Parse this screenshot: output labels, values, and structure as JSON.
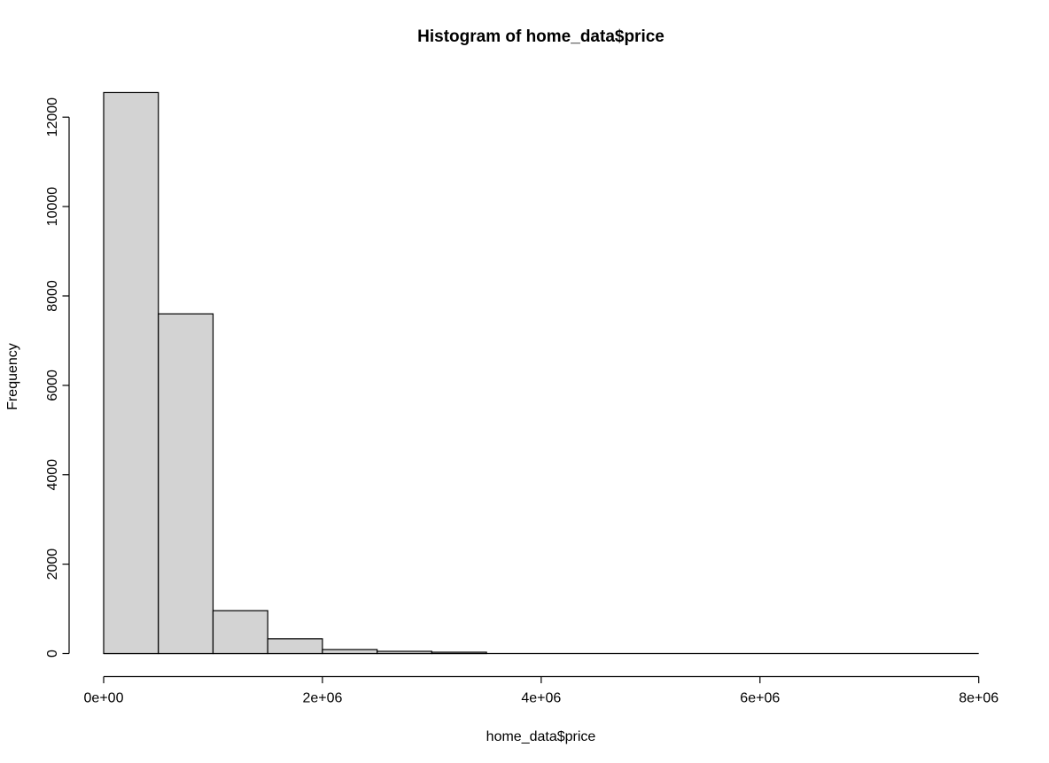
{
  "chart_data": {
    "type": "bar",
    "subtype": "histogram",
    "title": "Histogram of home_data$price",
    "xlabel": "home_data$price",
    "ylabel": "Frequency",
    "xlim": [
      0,
      8000000
    ],
    "ylim": [
      0,
      12000
    ],
    "bin_width": 500000,
    "bin_start": 0,
    "categories": [
      "0-0.5e6",
      "0.5e6-1e6",
      "1e6-1.5e6",
      "1.5e6-2e6",
      "2e6-2.5e6",
      "2.5e6-3e6",
      "3e6-3.5e6",
      "3.5e6-4e6",
      "4e6-4.5e6",
      "4.5e6-5e6",
      "5e6-5.5e6",
      "5.5e6-6e6",
      "6e6-6.5e6",
      "6.5e6-7e6",
      "7e6-7.5e6",
      "7.5e6-8e6"
    ],
    "values": [
      12550,
      7600,
      960,
      330,
      90,
      50,
      30,
      0,
      0,
      0,
      0,
      0,
      0,
      0,
      0,
      0
    ],
    "x_ticks": [
      {
        "value": 0,
        "label": "0e+00"
      },
      {
        "value": 2000000,
        "label": "2e+06"
      },
      {
        "value": 4000000,
        "label": "4e+06"
      },
      {
        "value": 6000000,
        "label": "6e+06"
      },
      {
        "value": 8000000,
        "label": "8e+06"
      }
    ],
    "y_ticks": [
      {
        "value": 0,
        "label": "0"
      },
      {
        "value": 2000,
        "label": "2000"
      },
      {
        "value": 4000,
        "label": "4000"
      },
      {
        "value": 6000,
        "label": "6000"
      },
      {
        "value": 8000,
        "label": "8000"
      },
      {
        "value": 10000,
        "label": "10000"
      },
      {
        "value": 12000,
        "label": "12000"
      }
    ],
    "grid": "off",
    "legend": "none",
    "bar_fill": "#d3d3d3",
    "bar_stroke": "#000000",
    "background": "#ffffff"
  }
}
